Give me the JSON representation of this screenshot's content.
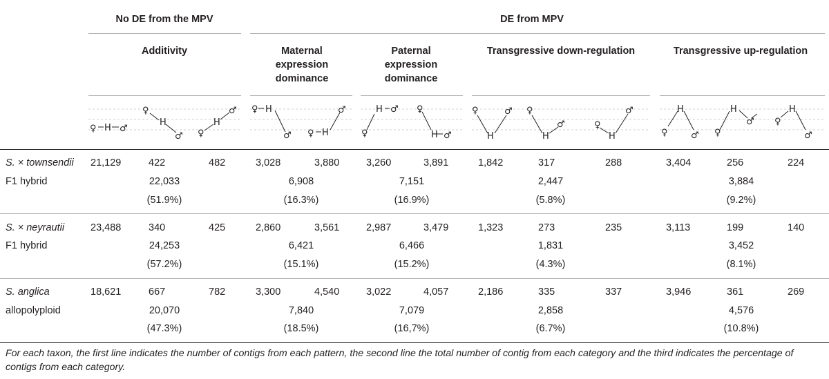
{
  "header": {
    "group_no_de": "No DE from the MPV",
    "group_de": "DE from MPV",
    "categories": [
      "Additivity",
      "Maternal expression dominance",
      "Paternal expression dominance",
      "Transgressive down-regulation",
      "Transgressive up-regulation"
    ],
    "maternal_lines": [
      "Maternal",
      "expression",
      "dominance"
    ],
    "paternal_lines": [
      "Paternal",
      "expression",
      "dominance"
    ]
  },
  "icons": {
    "female": "♀",
    "male": "♂",
    "hybrid": "H"
  },
  "rows": [
    {
      "taxon_prefix": "S. × ",
      "taxon_epithet": "townsendii",
      "taxon_line2": "F1 hybrid",
      "counts": [
        "21,129",
        "422",
        "482",
        "3,028",
        "3,880",
        "3,260",
        "3,891",
        "1,842",
        "317",
        "288",
        "3,404",
        "256",
        "224"
      ],
      "totals": [
        "22,033",
        "6,908",
        "7,151",
        "2,447",
        "3,884"
      ],
      "percents": [
        "(51.9%)",
        "(16.3%)",
        "(16.9%)",
        "(5.8%)",
        "(9.2%)"
      ]
    },
    {
      "taxon_prefix": "S. × ",
      "taxon_epithet": "neyrautii",
      "taxon_line2": "F1 hybrid",
      "counts": [
        "23,488",
        "340",
        "425",
        "2,860",
        "3,561",
        "2,987",
        "3,479",
        "1,323",
        "273",
        "235",
        "3,113",
        "199",
        "140"
      ],
      "totals": [
        "24,253",
        "6,421",
        "6,466",
        "1,831",
        "3,452"
      ],
      "percents": [
        "(57.2%)",
        "(15.1%)",
        "(15.2%)",
        "(4.3%)",
        "(8.1%)"
      ]
    },
    {
      "taxon_prefix": "",
      "taxon_epithet": "S. anglica",
      "taxon_line2": "allopolyploid",
      "counts": [
        "18,621",
        "667",
        "782",
        "3,300",
        "4,540",
        "3,022",
        "4,057",
        "2,186",
        "335",
        "337",
        "3,946",
        "361",
        "269"
      ],
      "totals": [
        "20,070",
        "7,840",
        "7,079",
        "2,858",
        "4,576"
      ],
      "percents": [
        "(47.3%)",
        "(18.5%)",
        "(16,7%)",
        "(6.7%)",
        "(10.8%)"
      ]
    }
  ],
  "footnote": "For each taxon, the first line indicates the number of contigs from each pattern, the second line the total number of contig from each category and the third indicates the percentage of contigs from each category."
}
